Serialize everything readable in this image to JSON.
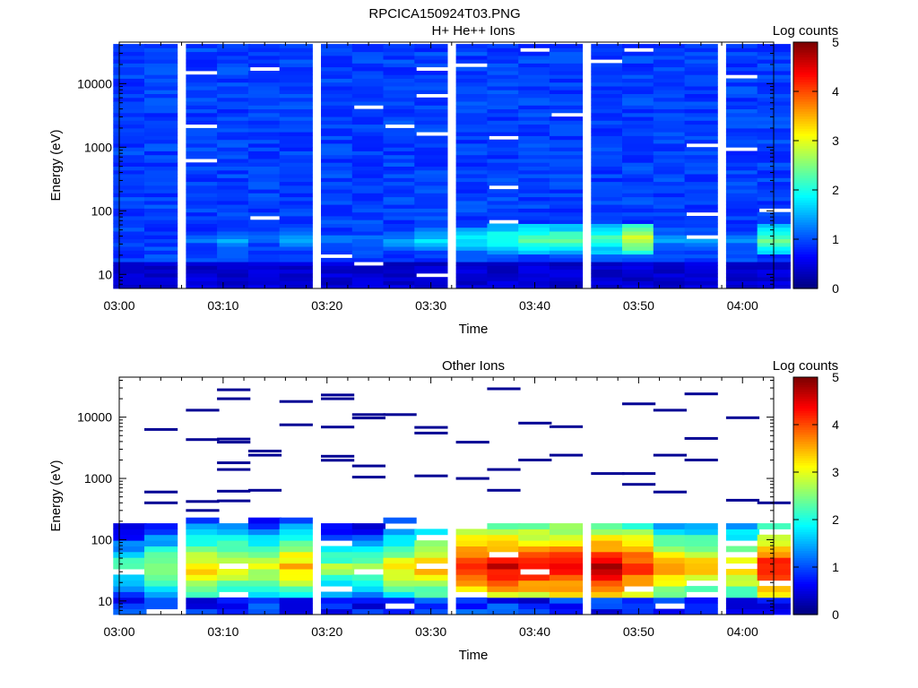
{
  "page": {
    "title": "RPCICA150924T03.PNG"
  },
  "chart_data": [
    {
      "type": "heatmap",
      "title": "H+ He++ Ions",
      "xlabel": "Time",
      "ylabel": "Energy (eV)",
      "yscale": "log",
      "xlim": [
        "03:00",
        "04:03"
      ],
      "ylim": [
        6,
        45000
      ],
      "x_ticks": [
        "03:00",
        "03:10",
        "03:20",
        "03:30",
        "03:40",
        "03:50",
        "04:00"
      ],
      "y_ticks": [
        "10",
        "100",
        "1000",
        "10000"
      ],
      "time_bins": [
        "03:01",
        "03:04",
        "03:08",
        "03:11",
        "03:14",
        "03:17",
        "03:21",
        "03:24",
        "03:27",
        "03:30",
        "03:34",
        "03:37",
        "03:40",
        "03:43",
        "03:47",
        "03:50",
        "03:53",
        "03:56",
        "04:00",
        "04:03"
      ],
      "energy_band_peaks_log_counts": [
        {
          "energy": 10,
          "values": [
            0.3,
            0.4,
            0.5,
            0.4,
            0.3,
            0.4,
            0.3,
            0.3,
            0.3,
            0.2,
            0.3,
            0.3,
            0.3,
            0.3,
            0.4,
            0.3,
            0.3,
            0.4,
            0.3,
            0.4
          ]
        },
        {
          "energy": 40,
          "values": [
            0.7,
            0.9,
            1.2,
            1.5,
            1.1,
            1.6,
            1.3,
            1.2,
            1.5,
            1.8,
            1.9,
            2.2,
            2.5,
            2.4,
            2.3,
            2.9,
            1.6,
            1.5,
            1.3,
            2.4
          ]
        },
        {
          "energy": 100,
          "values": [
            0.8,
            0.9,
            0.9,
            0.8,
            0.9,
            0.9,
            0.9,
            0.8,
            0.9,
            1.0,
            0.9,
            0.9,
            1.0,
            0.9,
            1.0,
            0.9,
            0.8,
            0.9,
            0.8,
            0.9
          ]
        },
        {
          "energy": 1000,
          "values": [
            0.9,
            1.0,
            1.0,
            0.9,
            1.0,
            1.0,
            0.9,
            0.9,
            1.0,
            1.0,
            1.0,
            1.0,
            1.0,
            1.0,
            1.0,
            1.0,
            0.9,
            1.0,
            0.9,
            1.0
          ]
        },
        {
          "energy": 10000,
          "values": [
            0.9,
            1.0,
            1.0,
            0.9,
            1.0,
            1.0,
            0.9,
            0.9,
            1.0,
            1.0,
            1.0,
            0.9,
            1.0,
            1.0,
            1.0,
            1.0,
            0.9,
            1.0,
            0.9,
            1.0
          ]
        }
      ],
      "colorbar": {
        "label": "Log counts",
        "range": [
          0,
          5
        ],
        "ticks": [
          "0",
          "1",
          "2",
          "3",
          "4",
          "5"
        ]
      }
    },
    {
      "type": "heatmap",
      "title": "Other Ions",
      "xlabel": "Time",
      "ylabel": "Energy (eV)",
      "yscale": "log",
      "xlim": [
        "03:00",
        "04:03"
      ],
      "ylim": [
        6,
        45000
      ],
      "x_ticks": [
        "03:00",
        "03:10",
        "03:20",
        "03:30",
        "03:40",
        "03:50",
        "04:00"
      ],
      "y_ticks": [
        "10",
        "100",
        "1000",
        "10000"
      ],
      "time_bins": [
        "03:01",
        "03:04",
        "03:08",
        "03:11",
        "03:14",
        "03:17",
        "03:21",
        "03:24",
        "03:27",
        "03:30",
        "03:34",
        "03:37",
        "03:40",
        "03:43",
        "03:47",
        "03:50",
        "03:53",
        "03:56",
        "04:00",
        "04:03"
      ],
      "profile_peak_log_counts": [
        2.4,
        2.8,
        3.4,
        3.3,
        3.1,
        3.6,
        2.7,
        2.6,
        3.3,
        3.6,
        4.5,
        4.6,
        4.5,
        4.6,
        4.7,
        4.4,
        3.7,
        3.6,
        3.5,
        4.4
      ],
      "profile_top_energy": [
        190,
        195,
        215,
        200,
        245,
        215,
        195,
        190,
        210,
        150,
        165,
        170,
        190,
        200,
        205,
        190,
        190,
        180,
        170,
        170
      ],
      "sparse_high_energy_hits": [
        {
          "time": "03:04",
          "energy": [
            6300,
            600,
            400
          ]
        },
        {
          "time": "03:08",
          "energy": [
            13000,
            4300,
            420,
            300
          ]
        },
        {
          "time": "03:11",
          "energy": [
            28000,
            20000,
            4400,
            3900,
            1800,
            1400,
            620,
            430
          ]
        },
        {
          "time": "03:14",
          "energy": [
            2800,
            2400,
            640
          ]
        },
        {
          "time": "03:17",
          "energy": [
            18000,
            7500
          ]
        },
        {
          "time": "03:21",
          "energy": [
            23000,
            20000,
            6900,
            2300,
            1980
          ]
        },
        {
          "time": "03:24",
          "energy": [
            11000,
            9700,
            1600,
            1050
          ]
        },
        {
          "time": "03:27",
          "energy": [
            11000
          ]
        },
        {
          "time": "03:30",
          "energy": [
            6800,
            5500,
            1100
          ]
        },
        {
          "time": "03:34",
          "energy": [
            3900,
            1000
          ]
        },
        {
          "time": "03:37",
          "energy": [
            29000,
            1400,
            640
          ]
        },
        {
          "time": "03:40",
          "energy": [
            8000,
            2000
          ]
        },
        {
          "time": "03:43",
          "energy": [
            7000,
            2400
          ]
        },
        {
          "time": "03:47",
          "energy": [
            1200
          ]
        },
        {
          "time": "03:50",
          "energy": [
            16500,
            1200,
            800
          ]
        },
        {
          "time": "03:53",
          "energy": [
            13000,
            2400,
            600
          ]
        },
        {
          "time": "03:56",
          "energy": [
            24000,
            4500,
            2000
          ]
        },
        {
          "time": "04:00",
          "energy": [
            9800,
            440
          ]
        },
        {
          "time": "04:03",
          "energy": [
            400
          ]
        }
      ],
      "colorbar": {
        "label": "Log counts",
        "range": [
          0,
          5
        ],
        "ticks": [
          "0",
          "1",
          "2",
          "3",
          "4",
          "5"
        ]
      }
    }
  ]
}
